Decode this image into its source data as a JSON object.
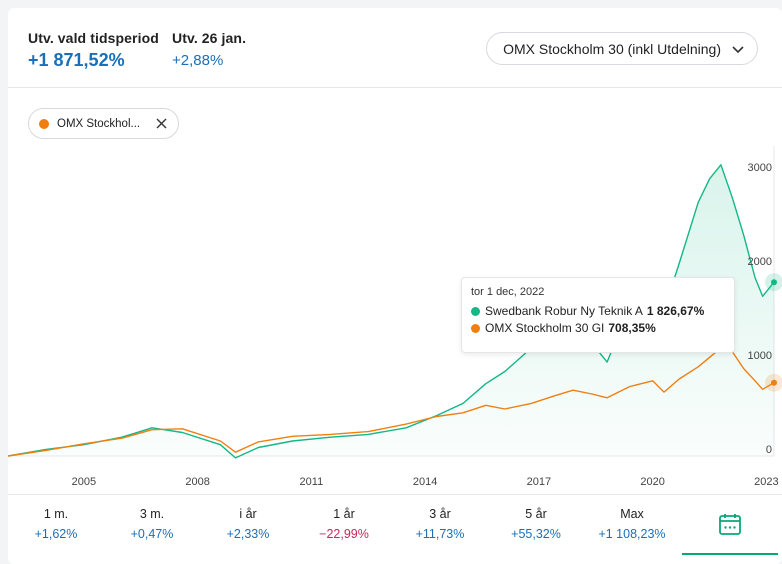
{
  "header": {
    "period_label": "Utv. vald tidsperiod",
    "period_value": "+1 871,52%",
    "day_label": "Utv. 26 jan.",
    "day_value": "+2,88%",
    "index_selector": "OMX Stockholm 30 (inkl Utdelning)"
  },
  "chip": {
    "label": "OMX Stockhol..."
  },
  "tooltip": {
    "date": "tor 1 dec, 2022",
    "series": [
      {
        "name": "Swedbank Robur Ny Teknik A",
        "value": "1 826,67%",
        "color": "#12b886"
      },
      {
        "name": "OMX Stockholm 30 GI",
        "value": "708,35%",
        "color": "#f07f12"
      }
    ]
  },
  "periods": [
    {
      "label": "1 m.",
      "value": "+1,62%"
    },
    {
      "label": "3 m.",
      "value": "+0,47%"
    },
    {
      "label": "i år",
      "value": "+2,33%"
    },
    {
      "label": "1 år",
      "value": "−22,99%"
    },
    {
      "label": "3 år",
      "value": "+11,73%"
    },
    {
      "label": "5 år",
      "value": "+55,32%"
    },
    {
      "label": "Max",
      "value": "+1 108,23%"
    }
  ],
  "calendar_icon": "calendar-icon",
  "chart_data": {
    "type": "area",
    "x_ticks": [
      "2005",
      "2008",
      "2011",
      "2014",
      "2017",
      "2020",
      "2023"
    ],
    "y_ticks": [
      "0",
      "1000",
      "2000",
      "3000"
    ],
    "ylim": [
      0,
      3300
    ],
    "series": [
      {
        "name": "Swedbank Robur Ny Teknik A",
        "color": "#12b886",
        "x": [
          2003.0,
          2004.0,
          2005.0,
          2006.0,
          2006.8,
          2007.6,
          2008.6,
          2009.0,
          2009.6,
          2010.5,
          2011.5,
          2012.5,
          2013.5,
          2014.3,
          2015.0,
          2015.6,
          2016.1,
          2016.8,
          2017.4,
          2017.9,
          2018.4,
          2018.8,
          2019.4,
          2020.0,
          2020.3,
          2020.7,
          2021.2,
          2021.5,
          2021.8,
          2022.1,
          2022.4,
          2022.7,
          2022.9,
          2023.2
        ],
        "values": [
          0,
          70,
          120,
          200,
          300,
          250,
          120,
          -20,
          90,
          160,
          200,
          230,
          300,
          430,
          560,
          770,
          900,
          1150,
          1420,
          1500,
          1200,
          1000,
          1600,
          1750,
          1550,
          2050,
          2700,
          2950,
          3100,
          2750,
          2350,
          1900,
          1700,
          1850
        ]
      },
      {
        "name": "OMX Stockholm 30 GI",
        "color": "#f07f12",
        "x": [
          2003.0,
          2004.0,
          2005.0,
          2006.0,
          2006.8,
          2007.6,
          2008.6,
          2009.0,
          2009.6,
          2010.5,
          2011.5,
          2012.5,
          2013.5,
          2014.3,
          2015.0,
          2015.6,
          2016.1,
          2016.8,
          2017.4,
          2017.9,
          2018.4,
          2018.8,
          2019.4,
          2020.0,
          2020.3,
          2020.7,
          2021.2,
          2021.5,
          2021.8,
          2022.1,
          2022.4,
          2022.7,
          2022.9,
          2023.2
        ],
        "values": [
          0,
          60,
          130,
          190,
          280,
          290,
          160,
          40,
          150,
          210,
          230,
          260,
          340,
          420,
          460,
          540,
          500,
          560,
          640,
          700,
          660,
          620,
          740,
          800,
          680,
          820,
          950,
          1050,
          1150,
          1110,
          930,
          800,
          710,
          780
        ]
      }
    ]
  }
}
